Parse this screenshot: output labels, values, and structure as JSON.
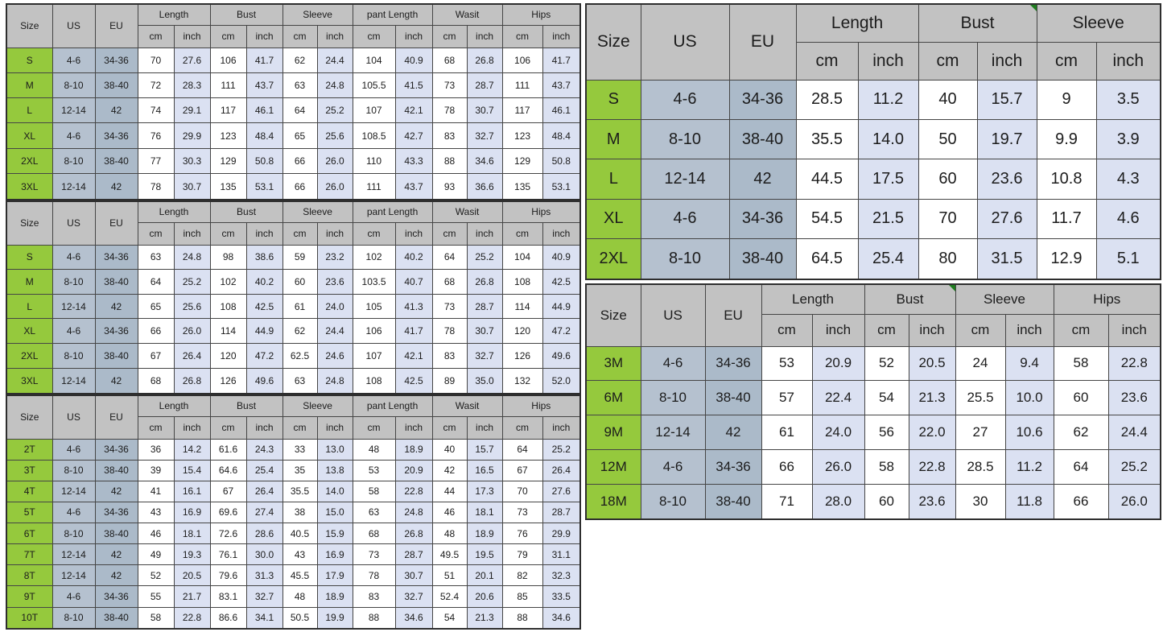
{
  "page": {
    "background": "#ffffff"
  },
  "colors": {
    "header_bg": "#c2c2c2",
    "size_column_bg": "#95c93d",
    "us_column_bg": "#b5c1cf",
    "eu_column_bg": "#abbac9",
    "cm_cell_bg": "#ffffff",
    "inch_cell_bg": "#dbe1f2",
    "border": "#454545",
    "comment_flag_green": "#1f7d1f"
  },
  "tables": [
    {
      "name": "adult-set-size-chart-1",
      "header": {
        "size": "Size",
        "us": "US",
        "eu": "EU",
        "groups": [
          "Length",
          "Bust",
          "Sleeve",
          "pant Length",
          "Wasit",
          "Hips"
        ],
        "units": [
          "cm",
          "inch"
        ],
        "markers": []
      },
      "rows": [
        {
          "size": "S",
          "us": "4-6",
          "eu": "34-36",
          "values": [
            "70",
            "27.6",
            "106",
            "41.7",
            "62",
            "24.4",
            "104",
            "40.9",
            "68",
            "26.8",
            "106",
            "41.7"
          ]
        },
        {
          "size": "M",
          "us": "8-10",
          "eu": "38-40",
          "values": [
            "72",
            "28.3",
            "111",
            "43.7",
            "63",
            "24.8",
            "105.5",
            "41.5",
            "73",
            "28.7",
            "111",
            "43.7"
          ]
        },
        {
          "size": "L",
          "us": "12-14",
          "eu": "42",
          "values": [
            "74",
            "29.1",
            "117",
            "46.1",
            "64",
            "25.2",
            "107",
            "42.1",
            "78",
            "30.7",
            "117",
            "46.1"
          ]
        },
        {
          "size": "XL",
          "us": "4-6",
          "eu": "34-36",
          "values": [
            "76",
            "29.9",
            "123",
            "48.4",
            "65",
            "25.6",
            "108.5",
            "42.7",
            "83",
            "32.7",
            "123",
            "48.4"
          ]
        },
        {
          "size": "2XL",
          "us": "8-10",
          "eu": "38-40",
          "values": [
            "77",
            "30.3",
            "129",
            "50.8",
            "66",
            "26.0",
            "110",
            "43.3",
            "88",
            "34.6",
            "129",
            "50.8"
          ]
        },
        {
          "size": "3XL",
          "us": "12-14",
          "eu": "42",
          "values": [
            "78",
            "30.7",
            "135",
            "53.1",
            "66",
            "26.0",
            "111",
            "43.7",
            "93",
            "36.6",
            "135",
            "53.1"
          ]
        }
      ]
    },
    {
      "name": "adult-set-size-chart-2",
      "header": {
        "size": "Size",
        "us": "US",
        "eu": "EU",
        "groups": [
          "Length",
          "Bust",
          "Sleeve",
          "pant Length",
          "Wasit",
          "Hips"
        ],
        "units": [
          "cm",
          "inch"
        ],
        "markers": []
      },
      "rows": [
        {
          "size": "S",
          "us": "4-6",
          "eu": "34-36",
          "values": [
            "63",
            "24.8",
            "98",
            "38.6",
            "59",
            "23.2",
            "102",
            "40.2",
            "64",
            "25.2",
            "104",
            "40.9"
          ]
        },
        {
          "size": "M",
          "us": "8-10",
          "eu": "38-40",
          "values": [
            "64",
            "25.2",
            "102",
            "40.2",
            "60",
            "23.6",
            "103.5",
            "40.7",
            "68",
            "26.8",
            "108",
            "42.5"
          ]
        },
        {
          "size": "L",
          "us": "12-14",
          "eu": "42",
          "values": [
            "65",
            "25.6",
            "108",
            "42.5",
            "61",
            "24.0",
            "105",
            "41.3",
            "73",
            "28.7",
            "114",
            "44.9"
          ]
        },
        {
          "size": "XL",
          "us": "4-6",
          "eu": "34-36",
          "values": [
            "66",
            "26.0",
            "114",
            "44.9",
            "62",
            "24.4",
            "106",
            "41.7",
            "78",
            "30.7",
            "120",
            "47.2"
          ]
        },
        {
          "size": "2XL",
          "us": "8-10",
          "eu": "38-40",
          "values": [
            "67",
            "26.4",
            "120",
            "47.2",
            "62.5",
            "24.6",
            "107",
            "42.1",
            "83",
            "32.7",
            "126",
            "49.6"
          ]
        },
        {
          "size": "3XL",
          "us": "12-14",
          "eu": "42",
          "values": [
            "68",
            "26.8",
            "126",
            "49.6",
            "63",
            "24.8",
            "108",
            "42.5",
            "89",
            "35.0",
            "132",
            "52.0"
          ]
        }
      ]
    },
    {
      "name": "toddler-set-size-chart",
      "header": {
        "size": "Size",
        "us": "US",
        "eu": "EU",
        "groups": [
          "Length",
          "Bust",
          "Sleeve",
          "pant Length",
          "Wasit",
          "Hips"
        ],
        "units": [
          "cm",
          "inch"
        ],
        "markers": []
      },
      "rows": [
        {
          "size": "2T",
          "us": "4-6",
          "eu": "34-36",
          "values": [
            "36",
            "14.2",
            "61.6",
            "24.3",
            "33",
            "13.0",
            "48",
            "18.9",
            "40",
            "15.7",
            "64",
            "25.2"
          ]
        },
        {
          "size": "3T",
          "us": "8-10",
          "eu": "38-40",
          "values": [
            "39",
            "15.4",
            "64.6",
            "25.4",
            "35",
            "13.8",
            "53",
            "20.9",
            "42",
            "16.5",
            "67",
            "26.4"
          ]
        },
        {
          "size": "4T",
          "us": "12-14",
          "eu": "42",
          "values": [
            "41",
            "16.1",
            "67",
            "26.4",
            "35.5",
            "14.0",
            "58",
            "22.8",
            "44",
            "17.3",
            "70",
            "27.6"
          ]
        },
        {
          "size": "5T",
          "us": "4-6",
          "eu": "34-36",
          "values": [
            "43",
            "16.9",
            "69.6",
            "27.4",
            "38",
            "15.0",
            "63",
            "24.8",
            "46",
            "18.1",
            "73",
            "28.7"
          ]
        },
        {
          "size": "6T",
          "us": "8-10",
          "eu": "38-40",
          "values": [
            "46",
            "18.1",
            "72.6",
            "28.6",
            "40.5",
            "15.9",
            "68",
            "26.8",
            "48",
            "18.9",
            "76",
            "29.9"
          ]
        },
        {
          "size": "7T",
          "us": "12-14",
          "eu": "42",
          "values": [
            "49",
            "19.3",
            "76.1",
            "30.0",
            "43",
            "16.9",
            "73",
            "28.7",
            "49.5",
            "19.5",
            "79",
            "31.1"
          ]
        },
        {
          "size": "8T",
          "us": "12-14",
          "eu": "42",
          "values": [
            "52",
            "20.5",
            "79.6",
            "31.3",
            "45.5",
            "17.9",
            "78",
            "30.7",
            "51",
            "20.1",
            "82",
            "32.3"
          ]
        },
        {
          "size": "9T",
          "us": "4-6",
          "eu": "34-36",
          "values": [
            "55",
            "21.7",
            "83.1",
            "32.7",
            "48",
            "18.9",
            "83",
            "32.7",
            "52.4",
            "20.6",
            "85",
            "33.5"
          ]
        },
        {
          "size": "10T",
          "us": "8-10",
          "eu": "38-40",
          "values": [
            "58",
            "22.8",
            "86.6",
            "34.1",
            "50.5",
            "19.9",
            "88",
            "34.6",
            "54",
            "21.3",
            "88",
            "34.6"
          ]
        }
      ]
    },
    {
      "name": "adult-top-size-chart",
      "header": {
        "size": "Size",
        "us": "US",
        "eu": "EU",
        "groups": [
          "Length",
          "Bust",
          "Sleeve"
        ],
        "units": [
          "cm",
          "inch"
        ],
        "markers": [
          {
            "group": 1,
            "corner": "top-right"
          }
        ]
      },
      "rows": [
        {
          "size": "S",
          "us": "4-6",
          "eu": "34-36",
          "values": [
            "28.5",
            "11.2",
            "40",
            "15.7",
            "9",
            "3.5"
          ]
        },
        {
          "size": "M",
          "us": "8-10",
          "eu": "38-40",
          "values": [
            "35.5",
            "14.0",
            "50",
            "19.7",
            "9.9",
            "3.9"
          ]
        },
        {
          "size": "L",
          "us": "12-14",
          "eu": "42",
          "values": [
            "44.5",
            "17.5",
            "60",
            "23.6",
            "10.8",
            "4.3"
          ]
        },
        {
          "size": "XL",
          "us": "4-6",
          "eu": "34-36",
          "values": [
            "54.5",
            "21.5",
            "70",
            "27.6",
            "11.7",
            "4.6"
          ]
        },
        {
          "size": "2XL",
          "us": "8-10",
          "eu": "38-40",
          "values": [
            "64.5",
            "25.4",
            "80",
            "31.5",
            "12.9",
            "5.1"
          ]
        }
      ]
    },
    {
      "name": "baby-months-size-chart",
      "header": {
        "size": "Size",
        "us": "US",
        "eu": "EU",
        "groups": [
          "Length",
          "Bust",
          "Sleeve",
          "Hips"
        ],
        "units": [
          "cm",
          "inch"
        ],
        "markers": [
          {
            "group": 1,
            "corner": "top-right"
          }
        ]
      },
      "rows": [
        {
          "size": "3M",
          "us": "4-6",
          "eu": "34-36",
          "values": [
            "53",
            "20.9",
            "52",
            "20.5",
            "24",
            "9.4",
            "58",
            "22.8"
          ]
        },
        {
          "size": "6M",
          "us": "8-10",
          "eu": "38-40",
          "values": [
            "57",
            "22.4",
            "54",
            "21.3",
            "25.5",
            "10.0",
            "60",
            "23.6"
          ]
        },
        {
          "size": "9M",
          "us": "12-14",
          "eu": "42",
          "values": [
            "61",
            "24.0",
            "56",
            "22.0",
            "27",
            "10.6",
            "62",
            "24.4"
          ]
        },
        {
          "size": "12M",
          "us": "4-6",
          "eu": "34-36",
          "values": [
            "66",
            "26.0",
            "58",
            "22.8",
            "28.5",
            "11.2",
            "64",
            "25.2"
          ]
        },
        {
          "size": "18M",
          "us": "8-10",
          "eu": "38-40",
          "values": [
            "71",
            "28.0",
            "60",
            "23.6",
            "30",
            "11.8",
            "66",
            "26.0"
          ]
        }
      ]
    }
  ]
}
